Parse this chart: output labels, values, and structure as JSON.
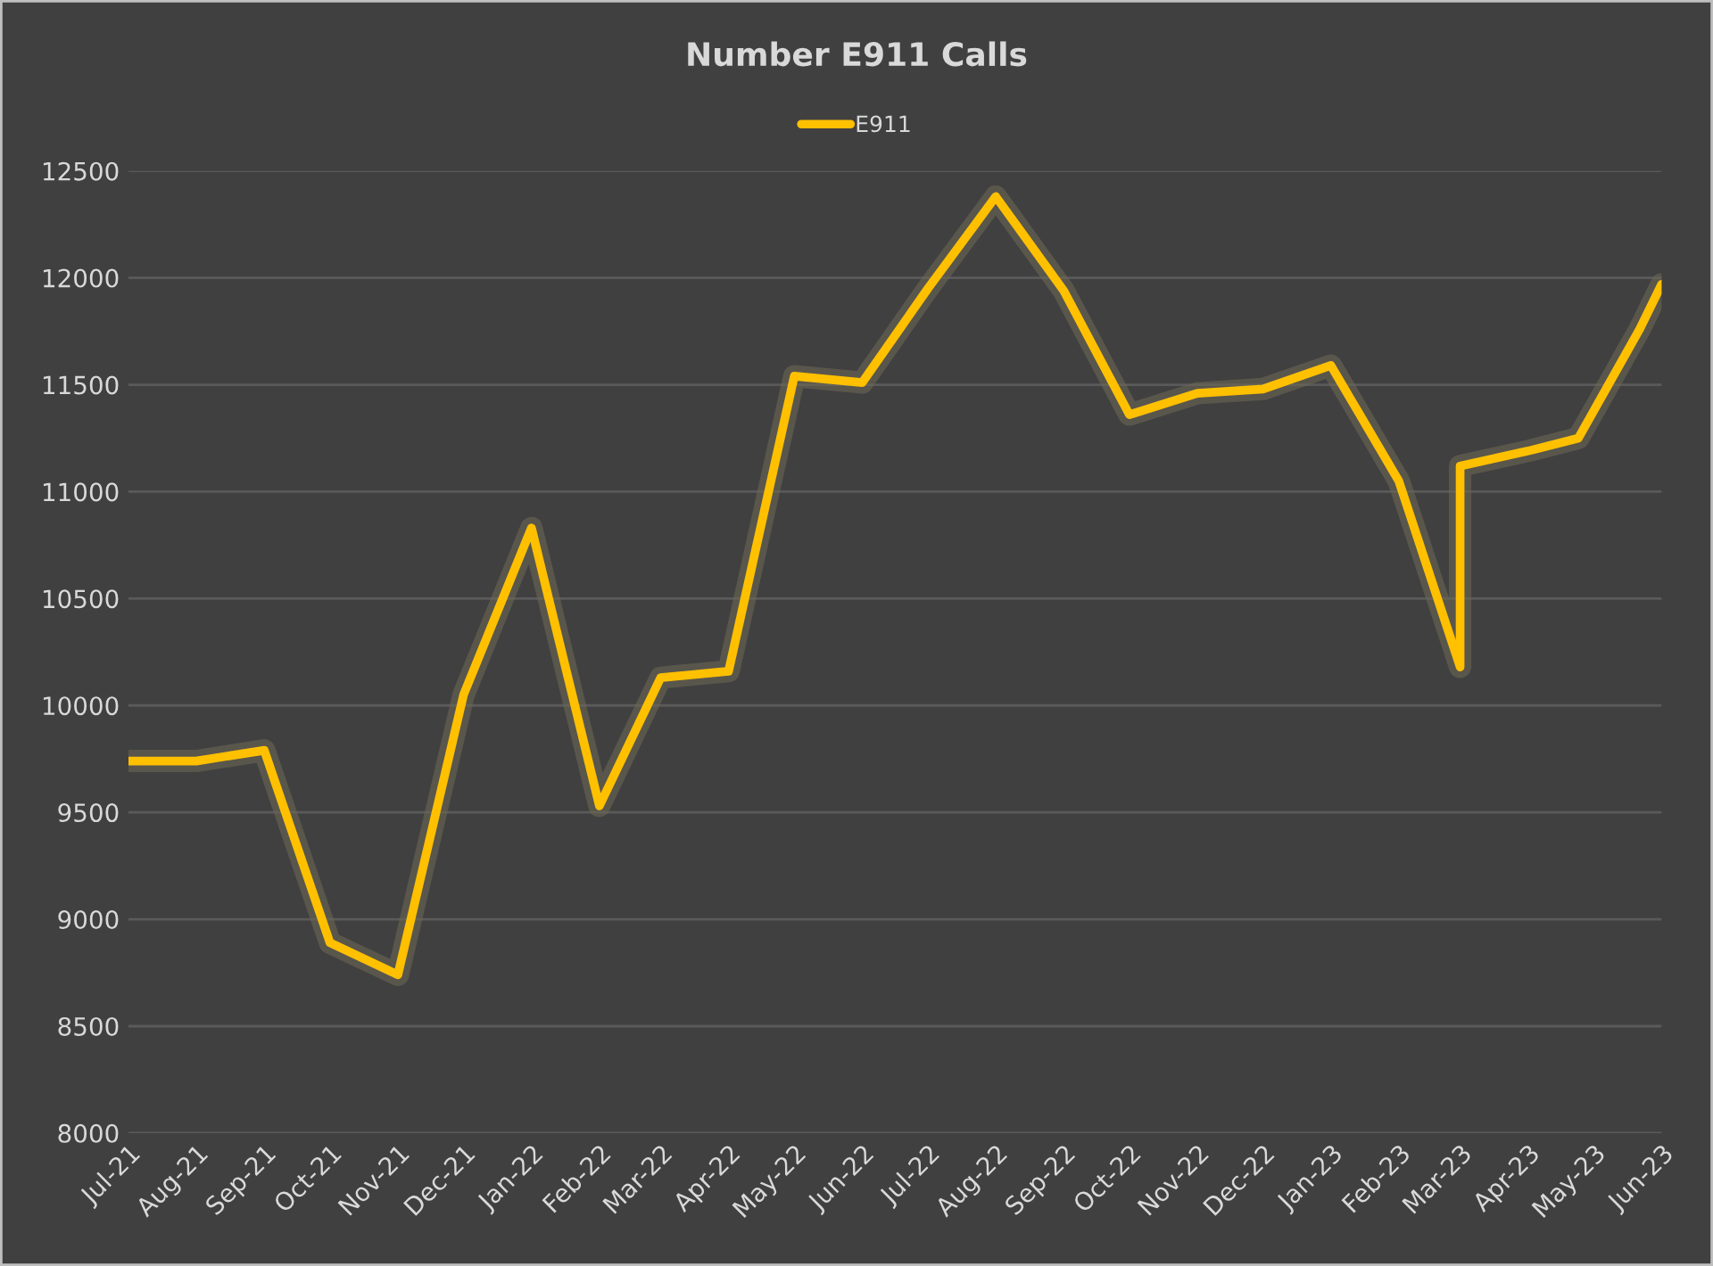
{
  "chart_data": {
    "type": "line",
    "title": "Number E911 Calls",
    "legend": "top",
    "grid": "y",
    "marker": "none",
    "line_style": "solid",
    "x": [
      "2021-07-01",
      "2021-08-01",
      "2021-09-01",
      "2021-10-01",
      "2021-11-01",
      "2021-12-01",
      "2022-01-01",
      "2022-02-01",
      "2022-03-01",
      "2022-04-01",
      "2022-05-01",
      "2022-06-01",
      "2022-07-01",
      "2022-08-01",
      "2022-09-01",
      "2022-10-01",
      "2022-11-01",
      "2022-12-01",
      "2023-01-01",
      "2023-02-01",
      "2023-03-01",
      "2023-03-01",
      "2023-04-01",
      "2023-04-24",
      "2023-05-22",
      "2023-06-01"
    ],
    "series": [
      {
        "name": "E911",
        "color": "#ffc000",
        "values": [
          9740,
          9740,
          9790,
          8890,
          8740,
          10050,
          10830,
          9530,
          10130,
          10160,
          11540,
          11510,
          11950,
          12380,
          11940,
          11360,
          11460,
          11480,
          11590,
          11050,
          10180,
          11120,
          11190,
          11250,
          11760,
          11970
        ]
      }
    ],
    "xlim": [
      "2021-07-01",
      "2023-06-01"
    ],
    "xticks": [
      {
        "value": "2021-07-01",
        "label": "Jul-21"
      },
      {
        "value": "2021-08-01",
        "label": "Aug-21"
      },
      {
        "value": "2021-09-01",
        "label": "Sep-21"
      },
      {
        "value": "2021-10-01",
        "label": "Oct-21"
      },
      {
        "value": "2021-11-01",
        "label": "Nov-21"
      },
      {
        "value": "2021-12-01",
        "label": "Dec-21"
      },
      {
        "value": "2022-01-01",
        "label": "Jan-22"
      },
      {
        "value": "2022-02-01",
        "label": "Feb-22"
      },
      {
        "value": "2022-03-01",
        "label": "Mar-22"
      },
      {
        "value": "2022-04-01",
        "label": "Apr-22"
      },
      {
        "value": "2022-05-01",
        "label": "May-22"
      },
      {
        "value": "2022-06-01",
        "label": "Jun-22"
      },
      {
        "value": "2022-07-01",
        "label": "Jul-22"
      },
      {
        "value": "2022-08-01",
        "label": "Aug-22"
      },
      {
        "value": "2022-09-01",
        "label": "Sep-22"
      },
      {
        "value": "2022-10-01",
        "label": "Oct-22"
      },
      {
        "value": "2022-11-01",
        "label": "Nov-22"
      },
      {
        "value": "2022-12-01",
        "label": "Dec-22"
      },
      {
        "value": "2023-01-01",
        "label": "Jan-23"
      },
      {
        "value": "2023-02-01",
        "label": "Feb-23"
      },
      {
        "value": "2023-03-01",
        "label": "Mar-23"
      },
      {
        "value": "2023-04-01",
        "label": "Apr-23"
      },
      {
        "value": "2023-05-01",
        "label": "May-23"
      },
      {
        "value": "2023-06-01",
        "label": "Jun-23"
      }
    ],
    "ylim": [
      8000,
      12500
    ],
    "yticks": [
      8000,
      8500,
      9000,
      9500,
      10000,
      10500,
      11000,
      11500,
      12000,
      12500
    ]
  }
}
